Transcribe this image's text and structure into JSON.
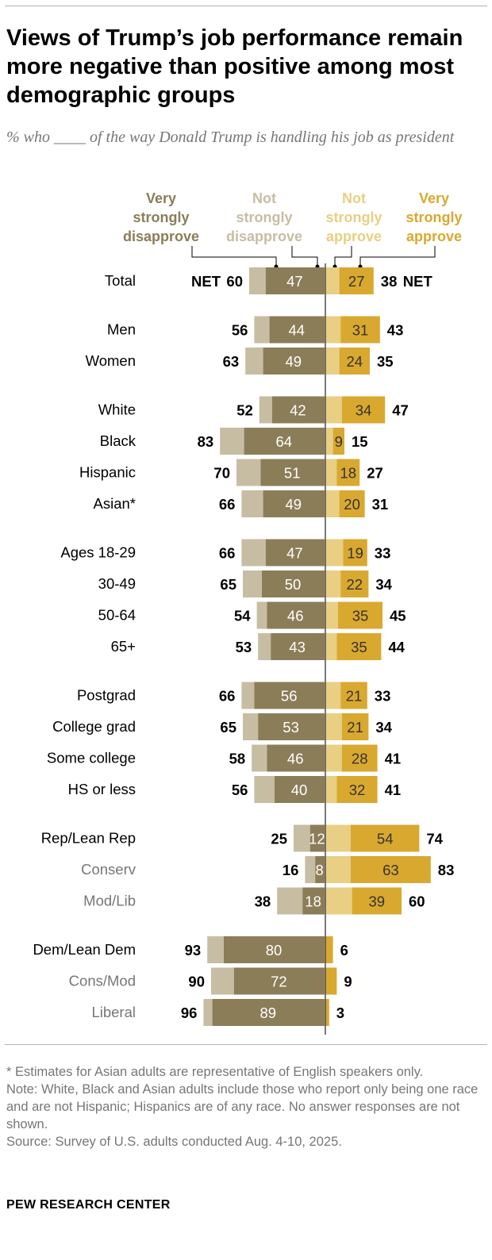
{
  "title": "Views of Trump’s job performance remain more negative than positive among most demographic groups",
  "subtitle": "% who ____ of the way Donald Trump is handling his job as president",
  "colors": {
    "very_strongly_disapprove": "#8b7d58",
    "not_strongly_disapprove": "#c7bda3",
    "not_strongly_approve": "#e8cf83",
    "very_strongly_approve": "#d9a82f",
    "muted_label": "#767676"
  },
  "chart_data": {
    "type": "bar",
    "orientation": "horizontal-diverging",
    "legend": [
      {
        "key": "very_strongly_disapprove",
        "label": [
          "Very",
          "strongly",
          "disapprove"
        ]
      },
      {
        "key": "not_strongly_disapprove",
        "label": [
          "Not",
          "strongly",
          "disapprove"
        ]
      },
      {
        "key": "not_strongly_approve",
        "label": [
          "Not",
          "strongly",
          "approve"
        ]
      },
      {
        "key": "very_strongly_approve",
        "label": [
          "Very",
          "strongly",
          "approve"
        ]
      }
    ],
    "net_label": "NET",
    "rows": [
      {
        "label": "Total",
        "very_dis": 47,
        "net_dis": 60,
        "very_app": 27,
        "net_app": 38,
        "sub": false,
        "group": 0
      },
      {
        "label": "Men",
        "very_dis": 44,
        "net_dis": 56,
        "very_app": 31,
        "net_app": 43,
        "sub": false,
        "group": 1
      },
      {
        "label": "Women",
        "very_dis": 49,
        "net_dis": 63,
        "very_app": 24,
        "net_app": 35,
        "sub": false,
        "group": 1
      },
      {
        "label": "White",
        "very_dis": 42,
        "net_dis": 52,
        "very_app": 34,
        "net_app": 47,
        "sub": false,
        "group": 2
      },
      {
        "label": "Black",
        "very_dis": 64,
        "net_dis": 83,
        "very_app": 9,
        "net_app": 15,
        "sub": false,
        "group": 2
      },
      {
        "label": "Hispanic",
        "very_dis": 51,
        "net_dis": 70,
        "very_app": 18,
        "net_app": 27,
        "sub": false,
        "group": 2
      },
      {
        "label": "Asian*",
        "very_dis": 49,
        "net_dis": 66,
        "very_app": 20,
        "net_app": 31,
        "sub": false,
        "group": 2
      },
      {
        "label": "Ages 18-29",
        "very_dis": 47,
        "net_dis": 66,
        "very_app": 19,
        "net_app": 33,
        "sub": false,
        "group": 3
      },
      {
        "label": "30-49",
        "very_dis": 50,
        "net_dis": 65,
        "very_app": 22,
        "net_app": 34,
        "sub": false,
        "group": 3
      },
      {
        "label": "50-64",
        "very_dis": 46,
        "net_dis": 54,
        "very_app": 35,
        "net_app": 45,
        "sub": false,
        "group": 3
      },
      {
        "label": "65+",
        "very_dis": 43,
        "net_dis": 53,
        "very_app": 35,
        "net_app": 44,
        "sub": false,
        "group": 3
      },
      {
        "label": "Postgrad",
        "very_dis": 56,
        "net_dis": 66,
        "very_app": 21,
        "net_app": 33,
        "sub": false,
        "group": 4
      },
      {
        "label": "College grad",
        "very_dis": 53,
        "net_dis": 65,
        "very_app": 21,
        "net_app": 34,
        "sub": false,
        "group": 4
      },
      {
        "label": "Some college",
        "very_dis": 46,
        "net_dis": 58,
        "very_app": 28,
        "net_app": 41,
        "sub": false,
        "group": 4
      },
      {
        "label": "HS or less",
        "very_dis": 40,
        "net_dis": 56,
        "very_app": 32,
        "net_app": 41,
        "sub": false,
        "group": 4
      },
      {
        "label": "Rep/Lean Rep",
        "very_dis": 12,
        "net_dis": 25,
        "very_app": 54,
        "net_app": 74,
        "sub": false,
        "group": 5
      },
      {
        "label": "Conserv",
        "very_dis": 8,
        "net_dis": 16,
        "very_app": 63,
        "net_app": 83,
        "sub": true,
        "group": 5
      },
      {
        "label": "Mod/Lib",
        "very_dis": 18,
        "net_dis": 38,
        "very_app": 39,
        "net_app": 60,
        "sub": true,
        "group": 5
      },
      {
        "label": "Dem/Lean Dem",
        "very_dis": 80,
        "net_dis": 93,
        "very_app": null,
        "net_app": 6,
        "sub": false,
        "group": 6
      },
      {
        "label": "Cons/Mod",
        "very_dis": 72,
        "net_dis": 90,
        "very_app": null,
        "net_app": 9,
        "sub": true,
        "group": 6
      },
      {
        "label": "Liberal",
        "very_dis": 89,
        "net_dis": 96,
        "very_app": null,
        "net_app": 3,
        "sub": true,
        "group": 6
      }
    ]
  },
  "notes": [
    "* Estimates for Asian adults are representative of English speakers only.",
    "Note: White, Black and Asian adults include those who report only being one race and are not Hispanic; Hispanics are of any race. No answer responses are not shown.",
    "Source: Survey of U.S. adults conducted Aug. 4-10, 2025."
  ],
  "brand": "PEW RESEARCH CENTER"
}
